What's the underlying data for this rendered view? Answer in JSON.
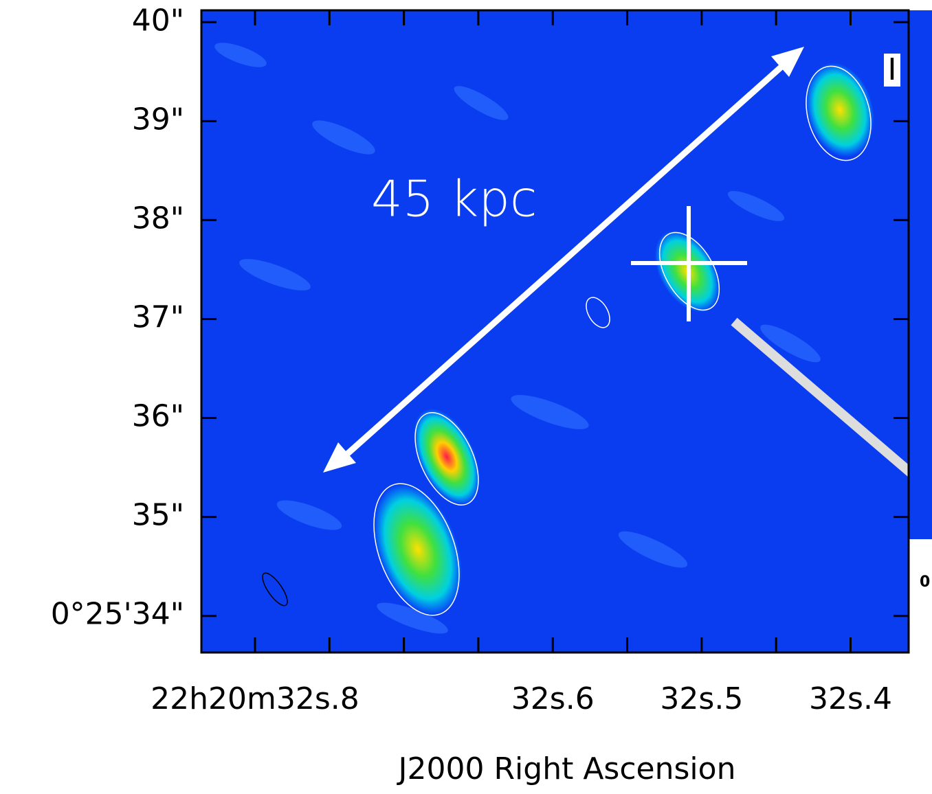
{
  "chart_data": {
    "type": "image",
    "xlabel": "J2000 Right Ascension",
    "xlim": [
      32.836,
      32.361
    ],
    "xticks": [
      {
        "value": 32.8,
        "label": "22h20m32s.8"
      },
      {
        "value": 32.75,
        "label": null
      },
      {
        "value": 32.7,
        "label": null
      },
      {
        "value": 32.65,
        "label": null
      },
      {
        "value": 32.6,
        "label": "32s.6"
      },
      {
        "value": 32.55,
        "label": null
      },
      {
        "value": 32.5,
        "label": "32s.5"
      },
      {
        "value": 32.45,
        "label": null
      },
      {
        "value": 32.4,
        "label": "32s.4"
      }
    ],
    "ylim": [
      33.63,
      40.12
    ],
    "yticks": [
      {
        "value": 34,
        "label": "0°25'34\""
      },
      {
        "value": 35,
        "label": "35\""
      },
      {
        "value": 36,
        "label": "36\""
      },
      {
        "value": 37,
        "label": "37\""
      },
      {
        "value": 38,
        "label": "38\""
      },
      {
        "value": 39,
        "label": "39\""
      },
      {
        "value": 40,
        "label": "40\""
      }
    ],
    "annotations": [
      "45 kpc",
      "I",
      "0"
    ]
  }
}
